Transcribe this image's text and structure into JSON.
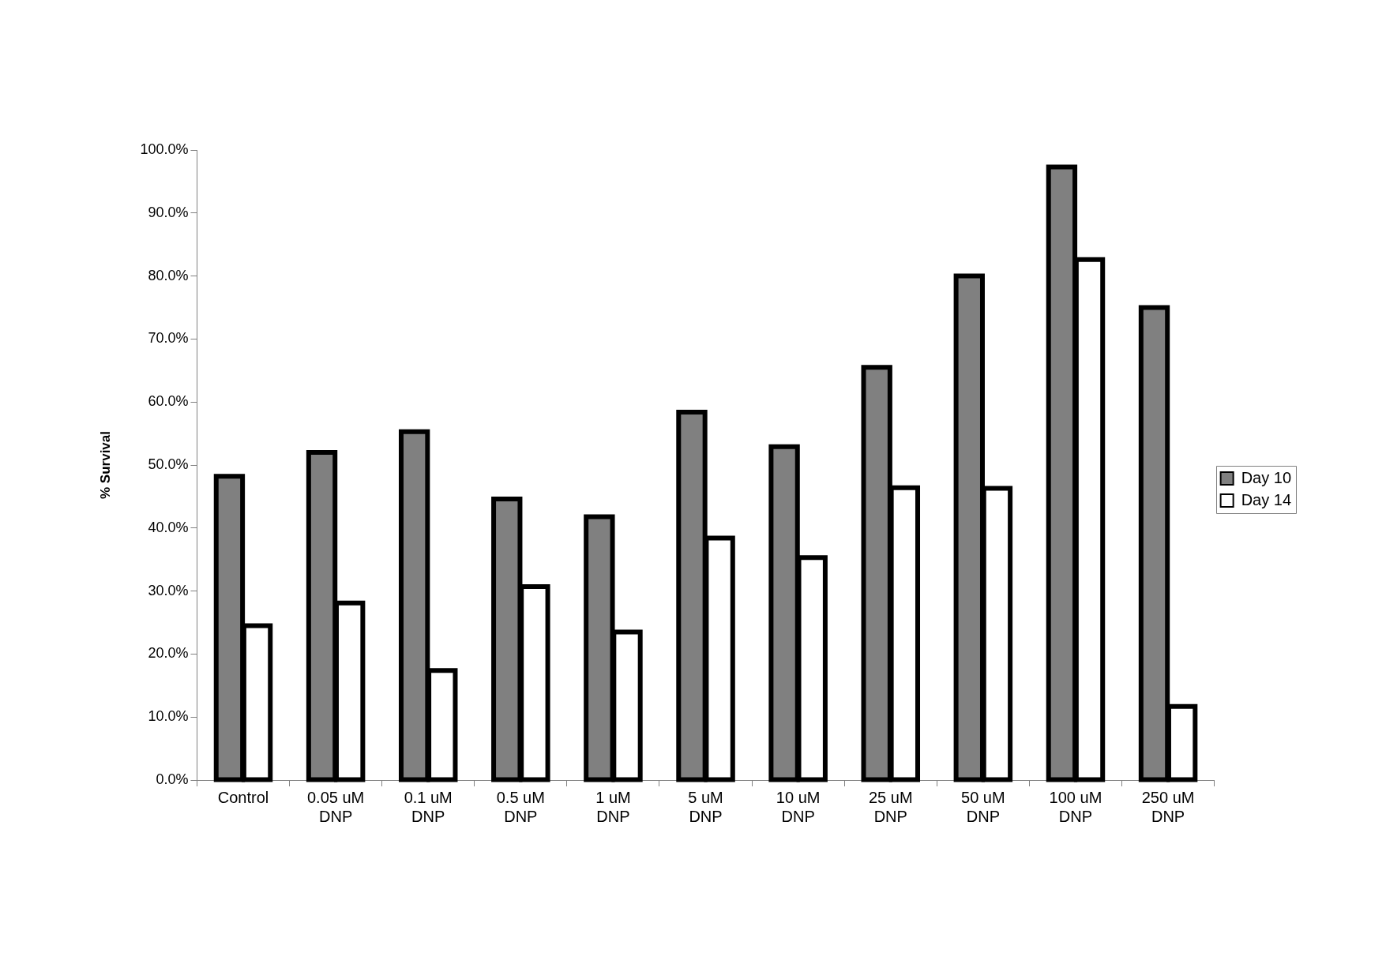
{
  "chart_data": {
    "type": "bar",
    "ylabel": "% Survival",
    "categories": [
      "Control",
      "0.05 uM\nDNP",
      "0.1 uM\nDNP",
      "0.5 uM\nDNP",
      "1 uM\nDNP",
      "5 uM\nDNP",
      "10 uM\nDNP",
      "25 uM\nDNP",
      "50 uM\nDNP",
      "100 uM\nDNP",
      "250 uM\nDNP"
    ],
    "series": [
      {
        "name": "Day 10",
        "color": "#808080",
        "values": [
          48.2,
          52.0,
          55.3,
          44.6,
          41.8,
          58.4,
          52.9,
          65.5,
          80.0,
          97.3,
          75.0
        ]
      },
      {
        "name": "Day 14",
        "color": "#ffffff",
        "values": [
          24.5,
          28.1,
          17.4,
          30.7,
          23.5,
          38.4,
          35.3,
          46.4,
          46.3,
          82.6,
          11.7
        ]
      }
    ],
    "ylim": [
      0,
      100
    ],
    "yticks": [
      {
        "value": 0,
        "label": "0.0%"
      },
      {
        "value": 10,
        "label": "10.0%"
      },
      {
        "value": 20,
        "label": "20.0%"
      },
      {
        "value": 30,
        "label": "30.0%"
      },
      {
        "value": 40,
        "label": "40.0%"
      },
      {
        "value": 50,
        "label": "50.0%"
      },
      {
        "value": 60,
        "label": "60.0%"
      },
      {
        "value": 70,
        "label": "70.0%"
      },
      {
        "value": 80,
        "label": "80.0%"
      },
      {
        "value": 90,
        "label": "90.0%"
      },
      {
        "value": 100,
        "label": "100.0%"
      }
    ],
    "grid": false,
    "legend": "right"
  }
}
